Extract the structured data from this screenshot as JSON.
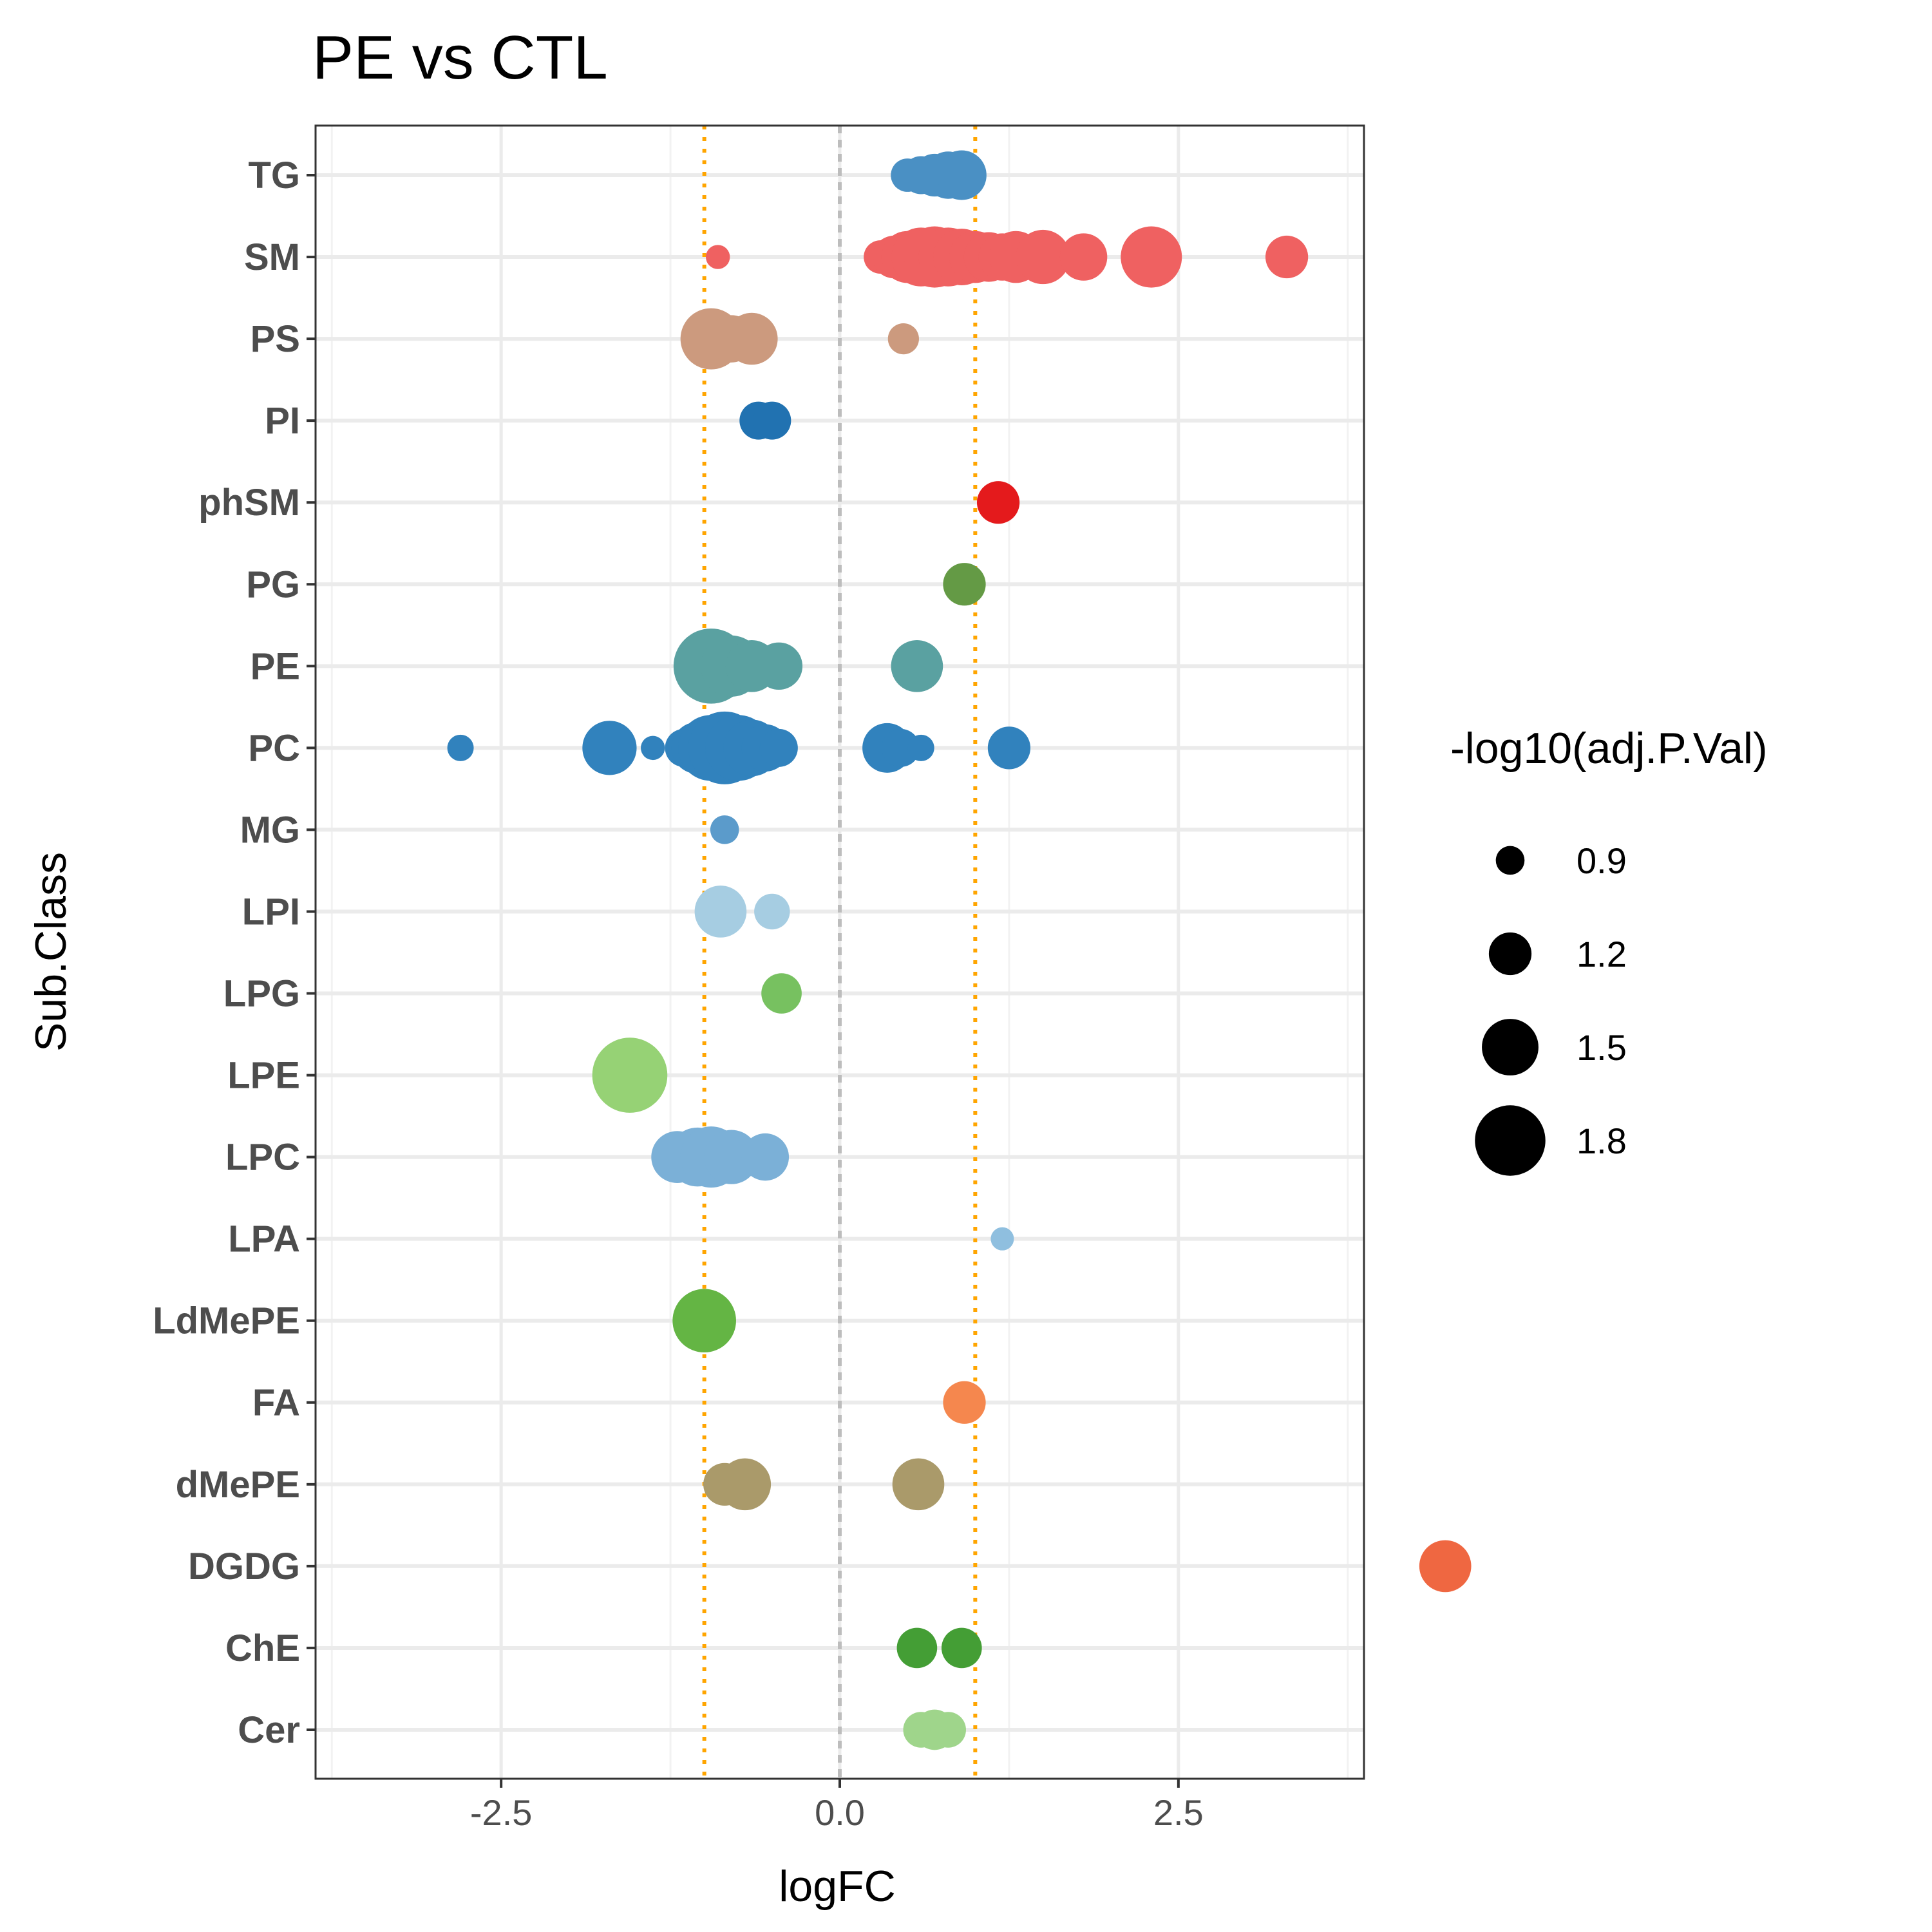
{
  "chart_data": {
    "type": "scatter",
    "title": "PE vs CTL",
    "xlabel": "logFC",
    "ylabel": "Sub.Class",
    "xlim": [
      -3.87,
      3.87
    ],
    "xticks": [
      -2.5,
      0.0,
      2.5
    ],
    "xtick_labels": [
      "-2.5",
      "0.0",
      "2.5"
    ],
    "categories": [
      "TG",
      "SM",
      "PS",
      "PI",
      "phSM",
      "PG",
      "PE",
      "PC",
      "MG",
      "LPI",
      "LPG",
      "LPE",
      "LPC",
      "LPA",
      "LdMePE",
      "FA",
      "dMePE",
      "DGDG",
      "ChE",
      "Cer"
    ],
    "reference_lines": [
      {
        "x": 0,
        "style": "dashed",
        "color": "#bdbdbd"
      },
      {
        "x": -1,
        "style": "dotted",
        "color": "#ffa500"
      },
      {
        "x": 1,
        "style": "dotted",
        "color": "#ffa500"
      }
    ],
    "grid": true,
    "legend": {
      "title": "-log10(adj.P.Val)",
      "placement": "right",
      "sizes": [
        {
          "label": "0.9",
          "value": 0.9
        },
        {
          "label": "1.2",
          "value": 1.2
        },
        {
          "label": "1.5",
          "value": 1.5
        },
        {
          "label": "1.8",
          "value": 1.8
        }
      ]
    },
    "series": [
      {
        "category": "TG",
        "color": "#4a90c4",
        "points": [
          {
            "x": 0.5,
            "size": 1.0
          },
          {
            "x": 0.6,
            "size": 1.1
          },
          {
            "x": 0.7,
            "size": 1.2
          },
          {
            "x": 0.8,
            "size": 1.3
          },
          {
            "x": 0.9,
            "size": 1.35
          }
        ]
      },
      {
        "category": "SM",
        "color": "#ef6161",
        "points": [
          {
            "x": -0.9,
            "size": 0.8
          },
          {
            "x": 0.3,
            "size": 1.0
          },
          {
            "x": 0.4,
            "size": 1.2
          },
          {
            "x": 0.5,
            "size": 1.4
          },
          {
            "x": 0.6,
            "size": 1.55
          },
          {
            "x": 0.7,
            "size": 1.6
          },
          {
            "x": 0.8,
            "size": 1.55
          },
          {
            "x": 0.9,
            "size": 1.5
          },
          {
            "x": 1.0,
            "size": 1.4
          },
          {
            "x": 1.1,
            "size": 1.35
          },
          {
            "x": 1.2,
            "size": 1.3
          },
          {
            "x": 1.3,
            "size": 1.4
          },
          {
            "x": 1.5,
            "size": 1.45
          },
          {
            "x": 1.8,
            "size": 1.3
          },
          {
            "x": 2.3,
            "size": 1.6
          },
          {
            "x": 3.3,
            "size": 1.2
          }
        ]
      },
      {
        "category": "PS",
        "color": "#cc9a7e",
        "points": [
          {
            "x": -0.95,
            "size": 1.6
          },
          {
            "x": -0.8,
            "size": 1.3
          },
          {
            "x": -0.65,
            "size": 1.4
          },
          {
            "x": 0.47,
            "size": 0.95
          }
        ]
      },
      {
        "category": "PI",
        "color": "#2172b1",
        "points": [
          {
            "x": -0.6,
            "size": 1.1
          },
          {
            "x": -0.5,
            "size": 1.1
          }
        ]
      },
      {
        "category": "phSM",
        "color": "#e41a1c",
        "points": [
          {
            "x": 1.17,
            "size": 1.2
          }
        ]
      },
      {
        "category": "PG",
        "color": "#649a45",
        "points": [
          {
            "x": 0.92,
            "size": 1.2
          }
        ]
      },
      {
        "category": "PE",
        "color": "#5aa1a1",
        "points": [
          {
            "x": -0.95,
            "size": 1.9
          },
          {
            "x": -0.8,
            "size": 1.6
          },
          {
            "x": -0.65,
            "size": 1.4
          },
          {
            "x": -0.45,
            "size": 1.3
          },
          {
            "x": 0.57,
            "size": 1.4
          }
        ]
      },
      {
        "category": "PC",
        "color": "#3182bd",
        "points": [
          {
            "x": -2.8,
            "size": 0.85
          },
          {
            "x": -1.7,
            "size": 1.45
          },
          {
            "x": -1.38,
            "size": 0.8
          },
          {
            "x": -1.15,
            "size": 1.1
          },
          {
            "x": -1.05,
            "size": 1.4
          },
          {
            "x": -0.95,
            "size": 1.7
          },
          {
            "x": -0.85,
            "size": 1.85
          },
          {
            "x": -0.75,
            "size": 1.7
          },
          {
            "x": -0.65,
            "size": 1.5
          },
          {
            "x": -0.55,
            "size": 1.3
          },
          {
            "x": -0.45,
            "size": 1.1
          },
          {
            "x": 0.35,
            "size": 1.35
          },
          {
            "x": 0.45,
            "size": 1.1
          },
          {
            "x": 0.6,
            "size": 0.85
          },
          {
            "x": 1.25,
            "size": 1.2
          }
        ]
      },
      {
        "category": "MG",
        "color": "#5b9bcb",
        "points": [
          {
            "x": -0.85,
            "size": 0.9
          }
        ]
      },
      {
        "category": "LPI",
        "color": "#a6cde2",
        "points": [
          {
            "x": -0.88,
            "size": 1.4
          },
          {
            "x": -0.5,
            "size": 1.05
          }
        ]
      },
      {
        "category": "LPG",
        "color": "#77c160",
        "points": [
          {
            "x": -0.43,
            "size": 1.15
          }
        ]
      },
      {
        "category": "LPE",
        "color": "#96d275",
        "points": [
          {
            "x": -1.55,
            "size": 1.9
          }
        ]
      },
      {
        "category": "LPC",
        "color": "#7bb0d7",
        "points": [
          {
            "x": -1.2,
            "size": 1.4
          },
          {
            "x": -1.05,
            "size": 1.55
          },
          {
            "x": -0.95,
            "size": 1.6
          },
          {
            "x": -0.8,
            "size": 1.45
          },
          {
            "x": -0.55,
            "size": 1.3
          }
        ]
      },
      {
        "category": "LPA",
        "color": "#8fbfdf",
        "points": [
          {
            "x": 1.2,
            "size": 0.78
          }
        ]
      },
      {
        "category": "LdMePE",
        "color": "#64b544",
        "points": [
          {
            "x": -1.0,
            "size": 1.65
          }
        ]
      },
      {
        "category": "FA",
        "color": "#f5874e",
        "points": [
          {
            "x": 0.92,
            "size": 1.2
          }
        ]
      },
      {
        "category": "dMePE",
        "color": "#aa9a6a",
        "points": [
          {
            "x": -0.85,
            "size": 1.2
          },
          {
            "x": -0.7,
            "size": 1.4
          },
          {
            "x": 0.58,
            "size": 1.4
          }
        ]
      },
      {
        "category": "DGDG",
        "color": "#ef6741",
        "points": [
          {
            "x": 4.47,
            "size": 1.4
          }
        ]
      },
      {
        "category": "ChE",
        "color": "#449e35",
        "points": [
          {
            "x": 0.57,
            "size": 1.15
          },
          {
            "x": 0.9,
            "size": 1.15
          }
        ]
      },
      {
        "category": "Cer",
        "color": "#9fd58b",
        "points": [
          {
            "x": 0.6,
            "size": 1.05
          },
          {
            "x": 0.7,
            "size": 1.15
          },
          {
            "x": 0.8,
            "size": 1.05
          }
        ]
      }
    ]
  }
}
